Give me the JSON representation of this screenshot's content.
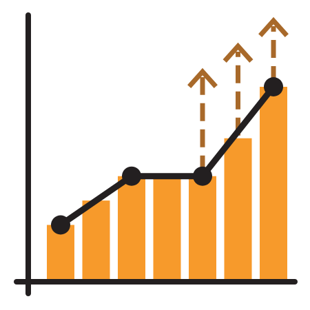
{
  "icon": {
    "name": "growth-chart-icon",
    "colors": {
      "bar": "#F79A2B",
      "line": "#231F20",
      "axis": "#231F20",
      "arrow": "#A8692A",
      "background": "#FFFFFF"
    },
    "bars": [
      {
        "category": 1,
        "value": 2.1
      },
      {
        "category": 2,
        "value": 3.0
      },
      {
        "category": 3,
        "value": 3.9
      },
      {
        "category": 4,
        "value": 3.9
      },
      {
        "category": 5,
        "value": 3.9
      },
      {
        "category": 6,
        "value": 5.3
      },
      {
        "category": 7,
        "value": 7.2
      }
    ],
    "trend_points": [
      {
        "category": 1,
        "value": 2.1
      },
      {
        "category": 3,
        "value": 3.9
      },
      {
        "category": 5,
        "value": 3.9
      },
      {
        "category": 7,
        "value": 7.2
      }
    ],
    "upward_arrows": [
      {
        "category": 5
      },
      {
        "category": 6
      },
      {
        "category": 7
      }
    ]
  }
}
